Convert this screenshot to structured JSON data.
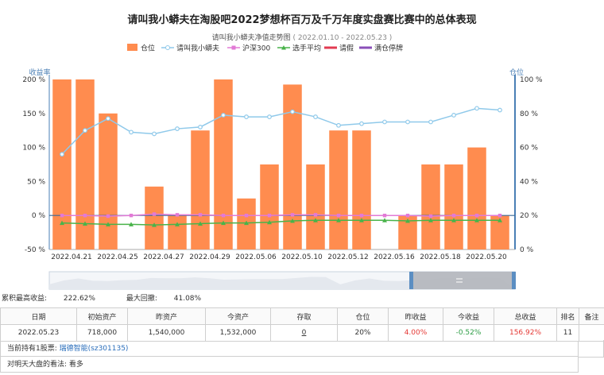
{
  "header": {
    "title": "请叫我小蟒夫在淘股吧2022梦想杯百万及千万年度实盘赛比赛中的总体表现",
    "subtitle": "请叫我小蟒夫净值走势图",
    "subtitle_range": "( 2022.01.10 - 2022.05.23 )"
  },
  "colors": {
    "position_bar": "#ff8c4f",
    "net_value": "#8fc9ea",
    "hs300": "#e27ad6",
    "player_avg": "#49b34a",
    "leave": "#e23b52",
    "full_halt": "#8a4fb8",
    "axis": "#4a7fb5"
  },
  "chart_data": {
    "type": "bar+line",
    "title": "请叫我小蟒夫净值走势图",
    "ylabel_left": "收益率",
    "ylabel_right": "仓位",
    "ylim_left": [
      -50,
      200
    ],
    "yticks_left": [
      "-50 %",
      "0 %",
      "50 %",
      "100 %",
      "150 %",
      "200 %"
    ],
    "ylim_right": [
      0,
      100
    ],
    "yticks_right": [
      "0 %",
      "20 %",
      "40 %",
      "60 %",
      "80 %",
      "100 %"
    ],
    "x_tick_labels": [
      "2022.04.21",
      "2022.04.25",
      "2022.04.27",
      "2022.04.29",
      "2022.05.06",
      "2022.05.10",
      "2022.05.12",
      "2022.05.16",
      "2022.05.18",
      "2022.05.20"
    ],
    "legend": [
      "仓位",
      "请叫我小蟒夫",
      "沪深300",
      "选手平均",
      "请假",
      "满仓停牌"
    ],
    "legend_position": "top",
    "series": [
      {
        "name": "仓位",
        "type": "bar",
        "axis": "right",
        "values": [
          100,
          100,
          80,
          0,
          37,
          20,
          70,
          100,
          30,
          50,
          97,
          50,
          70,
          70,
          0,
          20,
          50,
          50,
          60,
          20
        ]
      },
      {
        "name": "请叫我小蟒夫",
        "type": "line",
        "axis": "right",
        "values": [
          56,
          70,
          77,
          69,
          68,
          71,
          72,
          79,
          78,
          78,
          81,
          78,
          73,
          74,
          75,
          75,
          75,
          79,
          83,
          82
        ]
      },
      {
        "name": "沪深300",
        "type": "line",
        "axis": "left",
        "values": [
          0,
          0,
          -1,
          0,
          2,
          1,
          1,
          0,
          0,
          0,
          1,
          1,
          0,
          0,
          0,
          0,
          -1,
          0,
          0,
          0
        ]
      },
      {
        "name": "选手平均",
        "type": "line",
        "axis": "left",
        "values": [
          -11,
          -12,
          -13,
          -13,
          -14,
          -13,
          -12,
          -11,
          -11,
          -10,
          -8,
          -7,
          -7,
          -7,
          -7,
          -8,
          -7,
          -7,
          -7,
          -7
        ]
      }
    ]
  },
  "summary": {
    "max_return_label": "累积最高收益:",
    "max_return_value": "222.62%",
    "max_drawdown_label": "最大回撤:",
    "max_drawdown_value": "41.08%"
  },
  "table": {
    "headers": [
      "日期",
      "初始资产",
      "昨资产",
      "今资产",
      "存取",
      "仓位",
      "昨收益",
      "今收益",
      "总收益",
      "排名",
      "备注"
    ],
    "row": [
      "2022.05.23",
      "718,000",
      "1,540,000",
      "1,532,000",
      "0",
      "20%",
      "4.00%",
      "-0.52%",
      "156.92%",
      "11",
      ""
    ]
  },
  "holdings": {
    "label": "当前持有1股票:",
    "stock": "瑞德智能(sz301135)"
  },
  "outlook": {
    "label": "对明天大盘的看法:",
    "value": "看多"
  }
}
